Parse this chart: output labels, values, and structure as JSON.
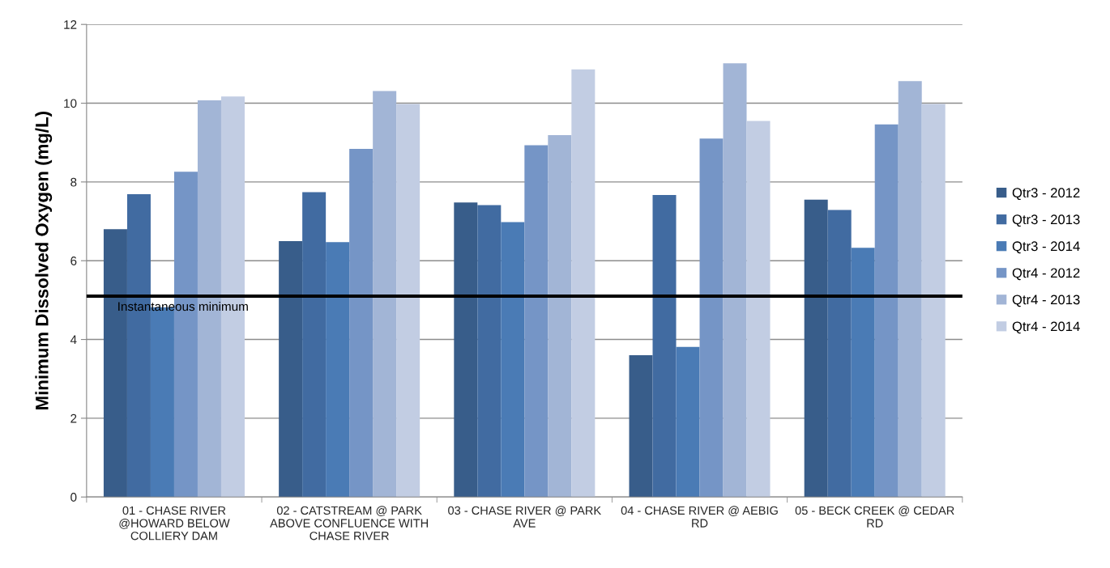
{
  "chart_data": {
    "type": "bar",
    "ylabel": "Minimum Dissolved Oxygen (mg/L)",
    "categories": [
      "01 - CHASE RIVER @HOWARD BELOW COLLIERY DAM",
      "02 - CATSTREAM @ PARK ABOVE CONFLUENCE WITH CHASE RIVER",
      "03 - CHASE RIVER @ PARK AVE",
      "04 - CHASE RIVER @ AEBIG RD",
      "05 - BECK CREEK @ CEDAR RD"
    ],
    "series": [
      {
        "name": "Qtr3 - 2012",
        "color": "#385d8a",
        "values": [
          6.8,
          6.5,
          7.48,
          3.6,
          7.55
        ]
      },
      {
        "name": "Qtr3 - 2013",
        "color": "#416ba1",
        "values": [
          7.69,
          7.74,
          7.41,
          7.67,
          7.29
        ]
      },
      {
        "name": "Qtr3 - 2014",
        "color": "#4a7bb5",
        "values": [
          4.82,
          6.47,
          6.98,
          3.81,
          6.33
        ]
      },
      {
        "name": "Qtr4 - 2012",
        "color": "#7595c6",
        "values": [
          8.26,
          8.84,
          8.93,
          9.1,
          9.46
        ]
      },
      {
        "name": "Qtr4 - 2013",
        "color": "#a2b5d6",
        "values": [
          10.07,
          10.31,
          9.19,
          11.01,
          10.56
        ]
      },
      {
        "name": "Qtr4 - 2014",
        "color": "#c2cde3",
        "values": [
          10.17,
          9.98,
          10.86,
          9.55,
          9.98
        ]
      }
    ],
    "ylim": [
      0,
      12
    ],
    "yticks": [
      0,
      2,
      4,
      6,
      8,
      10,
      12
    ],
    "grid": "y",
    "legend": "right",
    "ref_lines": [
      {
        "axis": "y",
        "value": 5.1,
        "label": "Instantaneous minimum",
        "color": "#000000"
      }
    ]
  }
}
